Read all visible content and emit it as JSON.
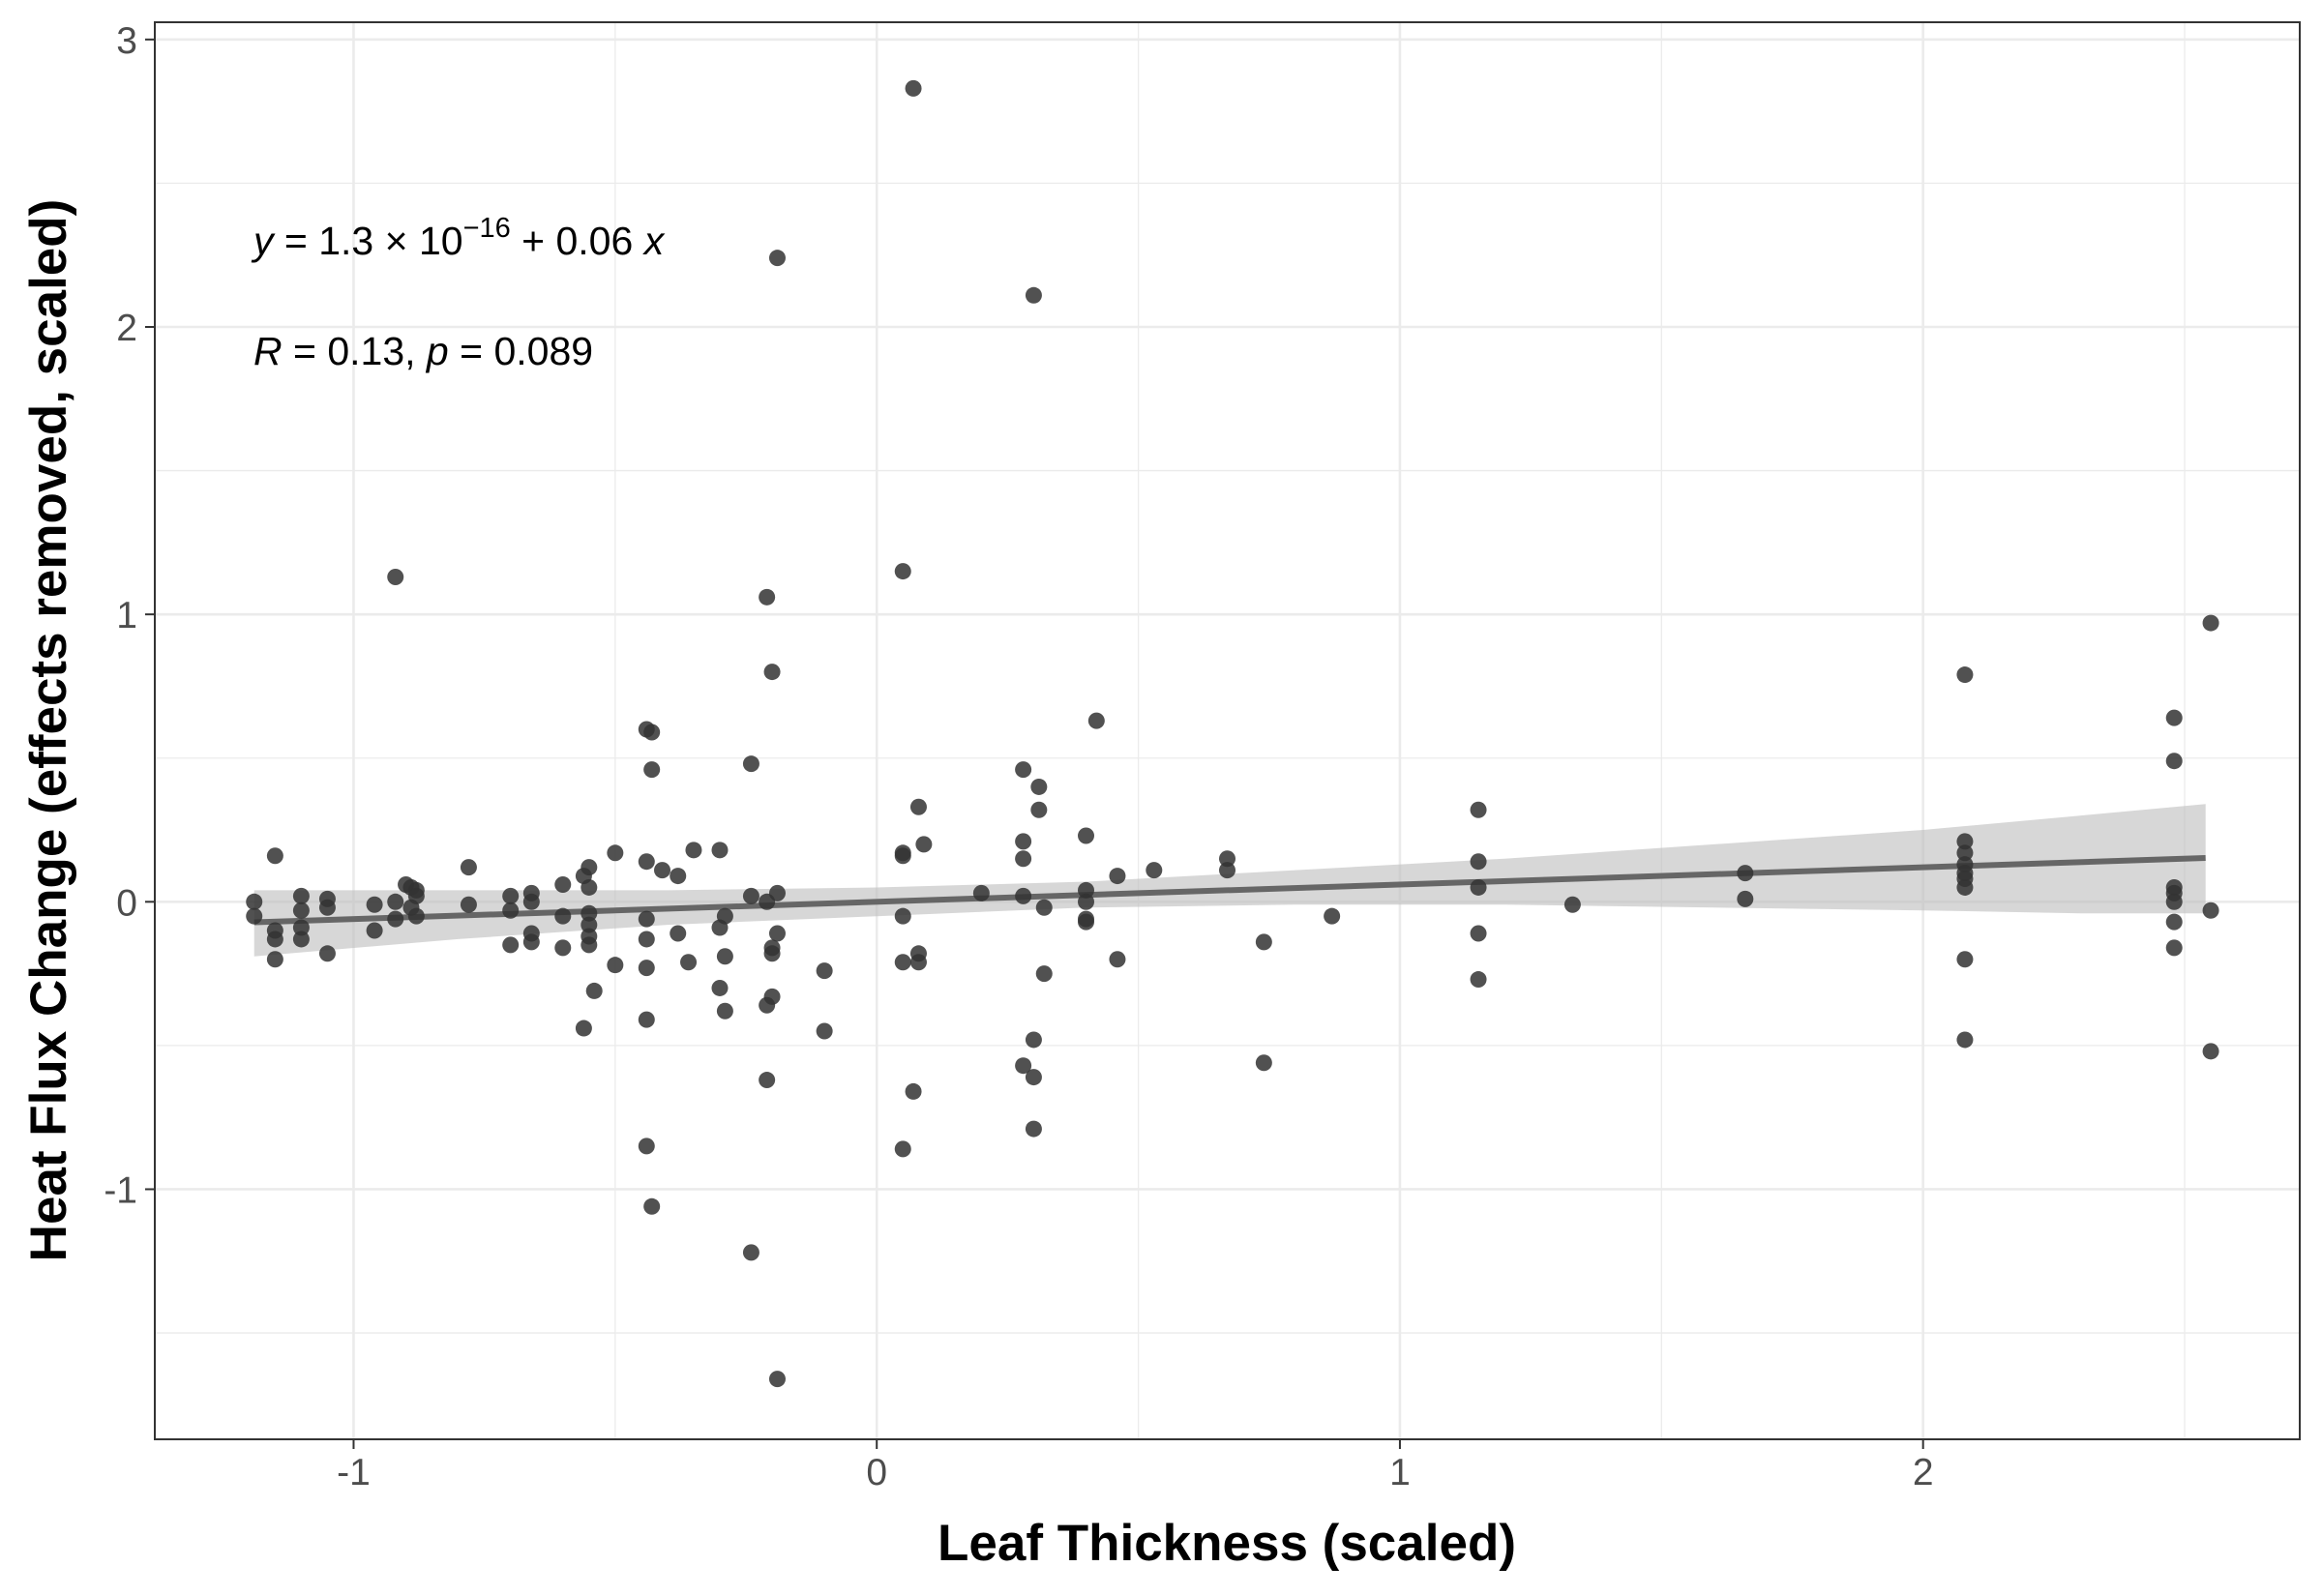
{
  "chart_data": {
    "type": "scatter",
    "xlabel": "Leaf Thickness (scaled)",
    "ylabel": "Heat Flux Change (effects removed, scaled)",
    "xlim": [
      -1.38,
      2.72
    ],
    "ylim": [
      -1.87,
      3.06
    ],
    "x_ticks": [
      -1,
      0,
      1,
      2
    ],
    "x_tick_labels": [
      "-1",
      "0",
      "1",
      "2"
    ],
    "y_ticks": [
      -1,
      0,
      1,
      2,
      3
    ],
    "y_tick_labels": [
      "-1",
      "0",
      "1",
      "2",
      "3"
    ],
    "grid": true,
    "theme": "bw",
    "colors": {
      "points": "#333333",
      "line": "#666666",
      "band": "#bdbdbd",
      "grid": "#ebebeb",
      "frame": "#333333"
    },
    "fit": {
      "method": "linear",
      "intercept": 0,
      "slope": 0.06,
      "x_range": [
        -1.19,
        2.54
      ],
      "ci_lower": [
        {
          "x": -1.19,
          "y": -0.19
        },
        {
          "x": -0.8,
          "y": -0.13
        },
        {
          "x": -0.4,
          "y": -0.08
        },
        {
          "x": 0.0,
          "y": -0.05
        },
        {
          "x": 0.4,
          "y": -0.02
        },
        {
          "x": 0.8,
          "y": -0.01
        },
        {
          "x": 1.2,
          "y": -0.01
        },
        {
          "x": 1.6,
          "y": -0.02
        },
        {
          "x": 2.0,
          "y": -0.03
        },
        {
          "x": 2.3,
          "y": -0.04
        },
        {
          "x": 2.54,
          "y": -0.04
        }
      ],
      "ci_upper": [
        {
          "x": -1.19,
          "y": 0.04
        },
        {
          "x": -0.8,
          "y": 0.04
        },
        {
          "x": -0.4,
          "y": 0.04
        },
        {
          "x": 0.0,
          "y": 0.05
        },
        {
          "x": 0.4,
          "y": 0.07
        },
        {
          "x": 0.8,
          "y": 0.11
        },
        {
          "x": 1.2,
          "y": 0.15
        },
        {
          "x": 1.6,
          "y": 0.2
        },
        {
          "x": 2.0,
          "y": 0.25
        },
        {
          "x": 2.3,
          "y": 0.3
        },
        {
          "x": 2.54,
          "y": 0.34
        }
      ]
    },
    "annotations": {
      "equation": {
        "y": "y",
        "eq": " = 1.3 × 10",
        "exponent": "−16",
        "rest": " + 0.06 ",
        "x": "x"
      },
      "stats": {
        "r": "R",
        "r_val": " = 0.13, ",
        "p": "p",
        "p_val": " = 0.089"
      }
    },
    "points": [
      {
        "x": 0.07,
        "y": 2.83
      },
      {
        "x": -0.19,
        "y": 2.24
      },
      {
        "x": 0.3,
        "y": 2.11
      },
      {
        "x": -0.92,
        "y": 1.13
      },
      {
        "x": 0.05,
        "y": 1.15
      },
      {
        "x": -0.21,
        "y": 1.06
      },
      {
        "x": -0.2,
        "y": 0.8
      },
      {
        "x": 2.08,
        "y": 0.79
      },
      {
        "x": 2.55,
        "y": 0.97
      },
      {
        "x": 2.48,
        "y": 0.64
      },
      {
        "x": 2.48,
        "y": 0.49
      },
      {
        "x": 0.42,
        "y": 0.63
      },
      {
        "x": -0.44,
        "y": 0.6
      },
      {
        "x": -0.43,
        "y": 0.59
      },
      {
        "x": -0.43,
        "y": 0.46
      },
      {
        "x": -0.24,
        "y": 0.48
      },
      {
        "x": 0.28,
        "y": 0.46
      },
      {
        "x": 0.31,
        "y": 0.4
      },
      {
        "x": 0.08,
        "y": 0.33
      },
      {
        "x": 0.31,
        "y": 0.32
      },
      {
        "x": 1.15,
        "y": 0.32
      },
      {
        "x": 0.09,
        "y": 0.2
      },
      {
        "x": 0.28,
        "y": 0.21
      },
      {
        "x": 0.4,
        "y": 0.23
      },
      {
        "x": 2.08,
        "y": 0.21
      },
      {
        "x": 2.08,
        "y": 0.17
      },
      {
        "x": 2.08,
        "y": 0.13
      },
      {
        "x": 2.08,
        "y": 0.1
      },
      {
        "x": 2.08,
        "y": 0.08
      },
      {
        "x": 2.08,
        "y": 0.05
      },
      {
        "x": -1.15,
        "y": 0.16
      },
      {
        "x": -0.78,
        "y": 0.12
      },
      {
        "x": -0.5,
        "y": 0.17
      },
      {
        "x": -0.44,
        "y": 0.14
      },
      {
        "x": -0.41,
        "y": 0.11
      },
      {
        "x": -0.38,
        "y": 0.09
      },
      {
        "x": -0.35,
        "y": 0.18
      },
      {
        "x": -0.3,
        "y": 0.18
      },
      {
        "x": 0.05,
        "y": 0.17
      },
      {
        "x": 0.05,
        "y": 0.16
      },
      {
        "x": 0.28,
        "y": 0.15
      },
      {
        "x": 0.67,
        "y": 0.15
      },
      {
        "x": 0.67,
        "y": 0.11
      },
      {
        "x": 0.53,
        "y": 0.11
      },
      {
        "x": 0.46,
        "y": 0.09
      },
      {
        "x": 1.15,
        "y": 0.14
      },
      {
        "x": 1.15,
        "y": 0.05
      },
      {
        "x": 1.66,
        "y": 0.1
      },
      {
        "x": 1.66,
        "y": 0.01
      },
      {
        "x": 1.33,
        "y": -0.01
      },
      {
        "x": 0.87,
        "y": -0.05
      },
      {
        "x": -0.55,
        "y": 0.12
      },
      {
        "x": -0.56,
        "y": 0.09
      },
      {
        "x": -0.6,
        "y": 0.06
      },
      {
        "x": -0.55,
        "y": 0.05
      },
      {
        "x": -0.66,
        "y": 0.03
      },
      {
        "x": -0.7,
        "y": 0.02
      },
      {
        "x": -0.9,
        "y": 0.06
      },
      {
        "x": -0.89,
        "y": 0.05
      },
      {
        "x": -0.88,
        "y": 0.04
      },
      {
        "x": -0.88,
        "y": 0.02
      },
      {
        "x": -0.92,
        "y": 0.0
      },
      {
        "x": -0.89,
        "y": -0.02
      },
      {
        "x": -0.88,
        "y": -0.05
      },
      {
        "x": -0.92,
        "y": -0.06
      },
      {
        "x": -1.19,
        "y": 0.0
      },
      {
        "x": -1.19,
        "y": -0.05
      },
      {
        "x": -1.15,
        "y": -0.1
      },
      {
        "x": -1.15,
        "y": -0.13
      },
      {
        "x": -1.15,
        "y": -0.2
      },
      {
        "x": -1.1,
        "y": 0.02
      },
      {
        "x": -1.1,
        "y": -0.03
      },
      {
        "x": -1.1,
        "y": -0.09
      },
      {
        "x": -1.1,
        "y": -0.13
      },
      {
        "x": -1.05,
        "y": 0.01
      },
      {
        "x": -1.05,
        "y": -0.02
      },
      {
        "x": -1.05,
        "y": -0.18
      },
      {
        "x": -0.96,
        "y": -0.01
      },
      {
        "x": -0.96,
        "y": -0.1
      },
      {
        "x": -0.78,
        "y": -0.01
      },
      {
        "x": -0.7,
        "y": -0.03
      },
      {
        "x": -0.66,
        "y": 0.0
      },
      {
        "x": -0.66,
        "y": -0.11
      },
      {
        "x": -0.66,
        "y": -0.14
      },
      {
        "x": -0.7,
        "y": -0.15
      },
      {
        "x": -0.6,
        "y": -0.05
      },
      {
        "x": -0.6,
        "y": -0.16
      },
      {
        "x": -0.55,
        "y": -0.04
      },
      {
        "x": -0.55,
        "y": -0.08
      },
      {
        "x": -0.55,
        "y": -0.12
      },
      {
        "x": -0.55,
        "y": -0.15
      },
      {
        "x": -0.5,
        "y": -0.22
      },
      {
        "x": -0.54,
        "y": -0.31
      },
      {
        "x": -0.56,
        "y": -0.44
      },
      {
        "x": -0.44,
        "y": -0.06
      },
      {
        "x": -0.44,
        "y": -0.13
      },
      {
        "x": -0.44,
        "y": -0.23
      },
      {
        "x": -0.44,
        "y": -0.41
      },
      {
        "x": -0.44,
        "y": -0.85
      },
      {
        "x": -0.43,
        "y": -1.06
      },
      {
        "x": -0.38,
        "y": -0.11
      },
      {
        "x": -0.36,
        "y": -0.21
      },
      {
        "x": -0.3,
        "y": -0.09
      },
      {
        "x": -0.29,
        "y": -0.05
      },
      {
        "x": -0.29,
        "y": -0.19
      },
      {
        "x": -0.3,
        "y": -0.3
      },
      {
        "x": -0.29,
        "y": -0.38
      },
      {
        "x": -0.24,
        "y": 0.02
      },
      {
        "x": -0.21,
        "y": 0.0
      },
      {
        "x": -0.19,
        "y": 0.03
      },
      {
        "x": -0.2,
        "y": -0.16
      },
      {
        "x": -0.2,
        "y": -0.18
      },
      {
        "x": -0.19,
        "y": -0.11
      },
      {
        "x": -0.21,
        "y": -0.36
      },
      {
        "x": -0.2,
        "y": -0.33
      },
      {
        "x": -0.21,
        "y": -0.62
      },
      {
        "x": -0.24,
        "y": -1.22
      },
      {
        "x": -0.19,
        "y": -1.66
      },
      {
        "x": -0.1,
        "y": -0.24
      },
      {
        "x": -0.1,
        "y": -0.45
      },
      {
        "x": 0.05,
        "y": -0.05
      },
      {
        "x": 0.05,
        "y": -0.21
      },
      {
        "x": 0.08,
        "y": -0.18
      },
      {
        "x": 0.08,
        "y": -0.21
      },
      {
        "x": 0.07,
        "y": -0.66
      },
      {
        "x": 0.05,
        "y": -0.86
      },
      {
        "x": 0.2,
        "y": 0.03
      },
      {
        "x": 0.28,
        "y": 0.02
      },
      {
        "x": 0.32,
        "y": -0.02
      },
      {
        "x": 0.32,
        "y": -0.25
      },
      {
        "x": 0.3,
        "y": -0.48
      },
      {
        "x": 0.28,
        "y": -0.57
      },
      {
        "x": 0.3,
        "y": -0.61
      },
      {
        "x": 0.3,
        "y": -0.79
      },
      {
        "x": 0.4,
        "y": 0.04
      },
      {
        "x": 0.4,
        "y": 0.0
      },
      {
        "x": 0.4,
        "y": -0.06
      },
      {
        "x": 0.4,
        "y": -0.07
      },
      {
        "x": 0.46,
        "y": -0.2
      },
      {
        "x": 0.74,
        "y": -0.14
      },
      {
        "x": 0.74,
        "y": -0.56
      },
      {
        "x": 1.15,
        "y": -0.11
      },
      {
        "x": 1.15,
        "y": -0.27
      },
      {
        "x": 2.08,
        "y": -0.2
      },
      {
        "x": 2.08,
        "y": -0.48
      },
      {
        "x": 2.48,
        "y": 0.05
      },
      {
        "x": 2.48,
        "y": 0.03
      },
      {
        "x": 2.48,
        "y": 0.0
      },
      {
        "x": 2.48,
        "y": -0.07
      },
      {
        "x": 2.48,
        "y": -0.16
      },
      {
        "x": 2.55,
        "y": -0.03
      },
      {
        "x": 2.55,
        "y": -0.52
      }
    ]
  }
}
